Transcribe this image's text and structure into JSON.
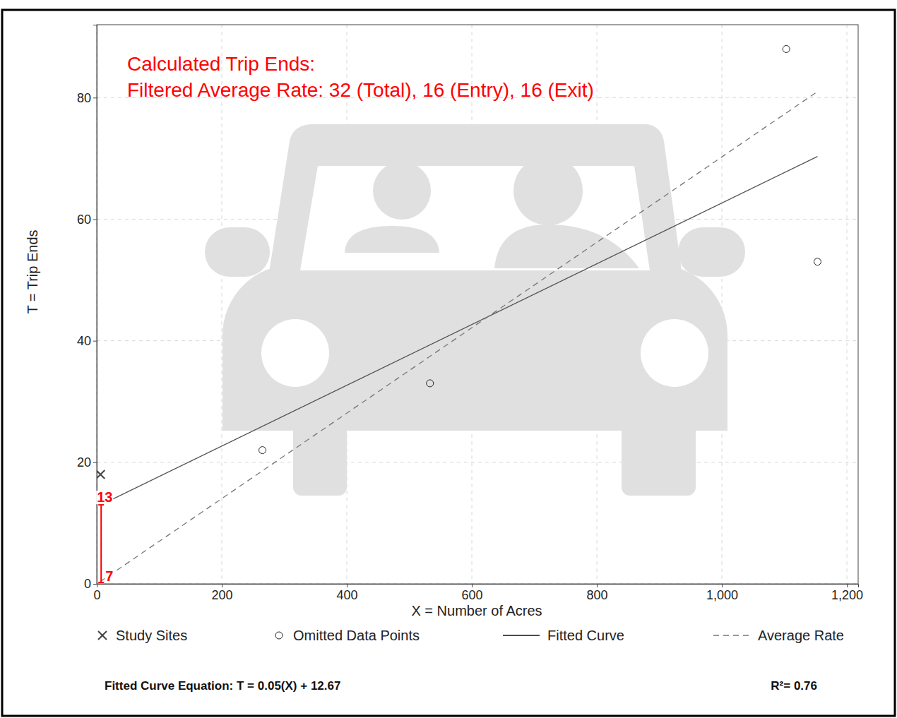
{
  "chart_data": {
    "type": "scatter",
    "title": "Calculated Trip Ends:",
    "subtitle": "Filtered Average Rate: 32 (Total), 16 (Entry), 16 (Exit)",
    "x_label": "X = Number of Acres",
    "y_label": "T = Trip Ends",
    "xlim": [
      0,
      1218
    ],
    "ylim": [
      0,
      92
    ],
    "xticks": [
      0,
      200,
      400,
      600,
      800,
      {
        "value": 1000,
        "label": "1,000"
      },
      {
        "value": 1200,
        "label": "1,200"
      }
    ],
    "yticks": [
      0,
      20,
      40,
      60,
      80
    ],
    "grid": true,
    "legend": "bottom",
    "series": [
      {
        "name": "Study Sites",
        "type": "scatter",
        "marker": "x",
        "color": "#444444",
        "x": [
          6
        ],
        "values": [
          18
        ]
      },
      {
        "name": "Omitted Data Points",
        "type": "scatter",
        "marker": "circle",
        "color": "#222222",
        "x": [
          265,
          533,
          1103,
          1153
        ],
        "values": [
          22,
          33,
          88,
          53
        ]
      },
      {
        "name": "Fitted Curve",
        "type": "line",
        "line_style": "solid",
        "color": "#555555",
        "x": [
          6,
          1153
        ],
        "values": [
          12.97,
          70.32
        ]
      },
      {
        "name": "Average Rate",
        "type": "line",
        "line_style": "dashed",
        "color": "#777777",
        "x": [
          6,
          1153
        ],
        "values": [
          0.4,
          81
        ]
      }
    ],
    "annotations": [
      {
        "text": "13",
        "x": 7,
        "y": 13
      },
      {
        "text": "7",
        "x": 7,
        "y": 0
      }
    ],
    "equation": "Fitted Curve Equation: T = 0.05(X) + 12.67",
    "r_squared": "R²= 0.76"
  }
}
